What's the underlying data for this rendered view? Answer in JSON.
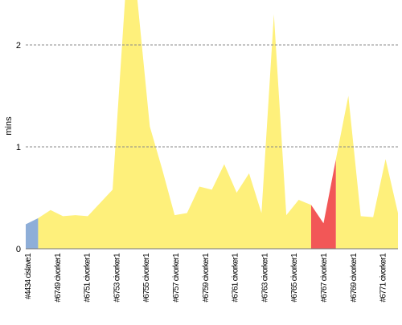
{
  "chart_data": {
    "type": "area",
    "title": "",
    "xlabel": "",
    "ylabel": "mins",
    "ylim": [
      0,
      2.5
    ],
    "yticks": [
      0,
      1,
      2
    ],
    "ytick_labels": [
      "0",
      "1",
      "2"
    ],
    "grid": "horizontal-dashed",
    "legend": "none",
    "x_tick_labels": [
      "#4434 cislave1",
      "#6749 civorker1",
      "#6751 civorker1",
      "#6753 civorker1",
      "#6755 civorker1",
      "#6757 civorker1",
      "#6759 civorker1",
      "#6761 civorker1",
      "#6763 civorker1",
      "#6765 civorker1",
      "#6767 civorker1",
      "#6769 civorker1",
      "#6771 civorker1"
    ],
    "values": [
      0.24,
      0.3,
      0.38,
      0.32,
      0.33,
      0.32,
      0.45,
      0.58,
      2.6,
      2.6,
      1.2,
      0.78,
      0.33,
      0.35,
      0.61,
      0.58,
      0.83,
      0.55,
      0.74,
      0.35,
      2.3,
      0.33,
      0.48,
      0.43,
      0.25,
      0.88,
      1.5,
      0.32,
      0.31,
      0.88,
      0.35
    ],
    "segment_colors": [
      "#8eaed8",
      "#fef07b",
      "#f25757",
      "#fef07b"
    ],
    "segment_breaks": [
      1,
      23,
      25
    ],
    "colors": {
      "slave": "#8eaed8",
      "worker": "#fef07b",
      "failed": "#f25757",
      "grid": "#888888",
      "axis": "#777777"
    }
  }
}
